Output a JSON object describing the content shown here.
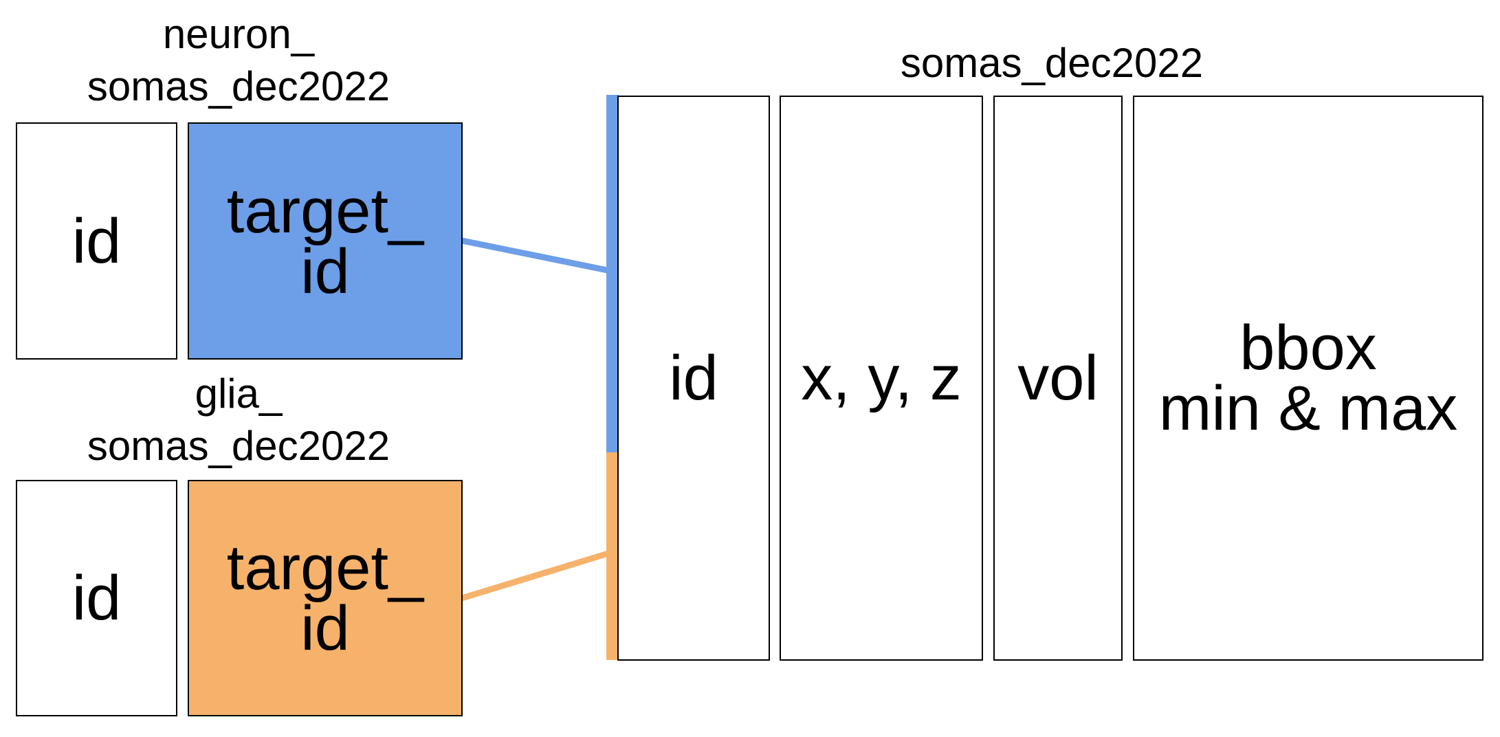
{
  "colors": {
    "neuron": "#6d9ee8",
    "glia": "#f6b26b",
    "border": "#000000",
    "background": "#ffffff"
  },
  "neuron_table": {
    "title_line1": "neuron_",
    "title_line2": "somas_dec2022",
    "col_id": "id",
    "col_target_line1": "target_",
    "col_target_line2": "id"
  },
  "glia_table": {
    "title_line1": "glia_",
    "title_line2": "somas_dec2022",
    "col_id": "id",
    "col_target_line1": "target_",
    "col_target_line2": "id"
  },
  "somas_table": {
    "title": "somas_dec2022",
    "col_id": "id",
    "col_xyz": "x, y, z",
    "col_vol": "vol",
    "col_bbox_line1": "bbox",
    "col_bbox_line2": "min & max"
  }
}
